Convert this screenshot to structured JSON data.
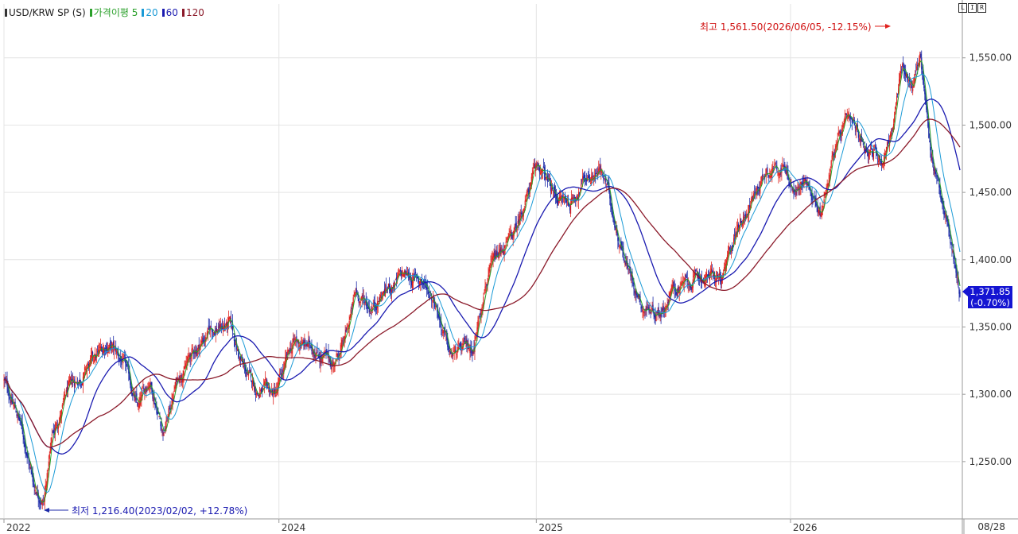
{
  "legend": {
    "symbol": "USD/KRW SP (S)",
    "price_avg_label": "가격이평",
    "ma": [
      {
        "label": "5",
        "color": "#2aa02a"
      },
      {
        "label": "20",
        "color": "#1a9ad6"
      },
      {
        "label": "60",
        "color": "#1a1ab0"
      },
      {
        "label": "120",
        "color": "#8b1a2a"
      }
    ]
  },
  "toolbar": {
    "l": "L",
    "i": "I",
    "r": "R"
  },
  "annotations": {
    "high": "최고 1,561.50(2026/06/05, -12.15%)",
    "low": "최저 1,216.40(2023/02/02, +12.78%)"
  },
  "current": {
    "price": "1,371.85",
    "change": "(-0.70%)"
  },
  "end_date_label": "08/28",
  "colors": {
    "up": "#e0221e",
    "down": "#1c2aa8",
    "ma5": "#2aa02a",
    "ma20": "#1a9ad6",
    "ma60": "#1a1ab0",
    "ma120": "#8b1a2a",
    "grid": "#e4e4e4"
  },
  "chart_data": {
    "type": "candlestick",
    "y_ticks": [
      1250,
      1300,
      1350,
      1400,
      1450,
      1500,
      1550
    ],
    "y_tick_labels": [
      "1,250.00",
      "1,300.00",
      "1,350.00",
      "1,400.00",
      "1,450.00",
      "1,500.00",
      "1,550.00"
    ],
    "ylim": [
      1208,
      1590
    ],
    "x_labels": [
      {
        "label": "2022",
        "t": 0
      },
      {
        "label": "2024",
        "t": 344
      },
      {
        "label": "2025",
        "t": 666
      },
      {
        "label": "2026",
        "t": 984
      }
    ],
    "x_count": 1197,
    "anchors": [
      [
        0,
        1310
      ],
      [
        20,
        1280
      ],
      [
        38,
        1232
      ],
      [
        50,
        1222
      ],
      [
        60,
        1268
      ],
      [
        80,
        1302
      ],
      [
        108,
        1322
      ],
      [
        130,
        1338
      ],
      [
        150,
        1322
      ],
      [
        168,
        1288
      ],
      [
        182,
        1312
      ],
      [
        200,
        1272
      ],
      [
        218,
        1314
      ],
      [
        236,
        1330
      ],
      [
        258,
        1348
      ],
      [
        282,
        1352
      ],
      [
        300,
        1318
      ],
      [
        318,
        1302
      ],
      [
        340,
        1300
      ],
      [
        362,
        1338
      ],
      [
        388,
        1335
      ],
      [
        410,
        1322
      ],
      [
        426,
        1338
      ],
      [
        440,
        1375
      ],
      [
        458,
        1365
      ],
      [
        478,
        1378
      ],
      [
        500,
        1388
      ],
      [
        522,
        1385
      ],
      [
        540,
        1370
      ],
      [
        558,
        1328
      ],
      [
        574,
        1332
      ],
      [
        588,
        1336
      ],
      [
        602,
        1385
      ],
      [
        622,
        1405
      ],
      [
        640,
        1420
      ],
      [
        652,
        1445
      ],
      [
        668,
        1470
      ],
      [
        688,
        1448
      ],
      [
        708,
        1442
      ],
      [
        726,
        1460
      ],
      [
        744,
        1468
      ],
      [
        752,
        1458
      ],
      [
        768,
        1420
      ],
      [
        782,
        1392
      ],
      [
        800,
        1365
      ],
      [
        820,
        1362
      ],
      [
        838,
        1378
      ],
      [
        858,
        1382
      ],
      [
        878,
        1388
      ],
      [
        900,
        1386
      ],
      [
        918,
        1426
      ],
      [
        936,
        1445
      ],
      [
        954,
        1468
      ],
      [
        972,
        1472
      ],
      [
        990,
        1448
      ],
      [
        1006,
        1460
      ],
      [
        1022,
        1432
      ],
      [
        1036,
        1478
      ],
      [
        1054,
        1500
      ],
      [
        1068,
        1492
      ],
      [
        1084,
        1482
      ],
      [
        1100,
        1475
      ],
      [
        1112,
        1500
      ],
      [
        1124,
        1542
      ],
      [
        1136,
        1530
      ],
      [
        1146,
        1552
      ],
      [
        1160,
        1478
      ],
      [
        1172,
        1450
      ],
      [
        1186,
        1410
      ],
      [
        1197,
        1371
      ]
    ],
    "series_names": [
      "5",
      "20",
      "60",
      "120"
    ],
    "high": {
      "value": 1561.5,
      "date": "2026/06/05"
    },
    "low": {
      "value": 1216.4,
      "date": "2023/02/02"
    }
  }
}
